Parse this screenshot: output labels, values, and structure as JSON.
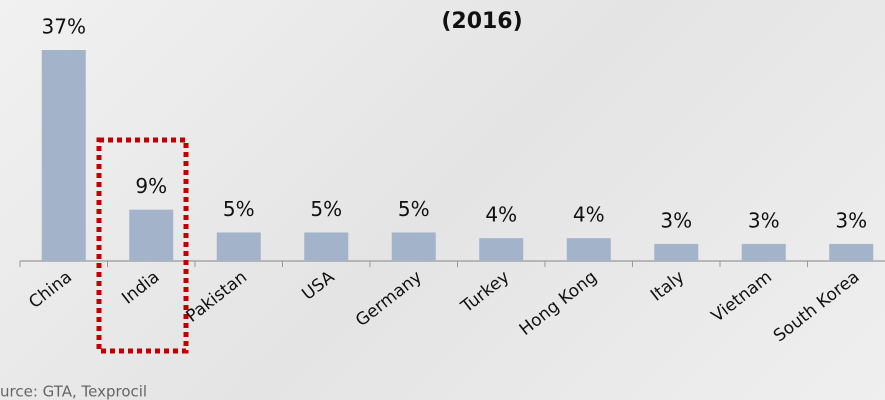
{
  "chart_data": {
    "type": "bar",
    "title": "(2016)",
    "categories": [
      "China",
      "India",
      "Pakistan",
      "USA",
      "Germany",
      "Turkey",
      "Hong Kong",
      "Italy",
      "Vietnam",
      "South Korea"
    ],
    "values": [
      37,
      9,
      5,
      5,
      5,
      4,
      4,
      3,
      3,
      3
    ],
    "value_labels": [
      "37%",
      "9%",
      "5%",
      "5%",
      "5%",
      "4%",
      "4%",
      "3%",
      "3%",
      "3%"
    ],
    "color": "#a3b3c9",
    "ylim": [
      0,
      37
    ],
    "source": "urce: GTA, Texprocil"
  }
}
